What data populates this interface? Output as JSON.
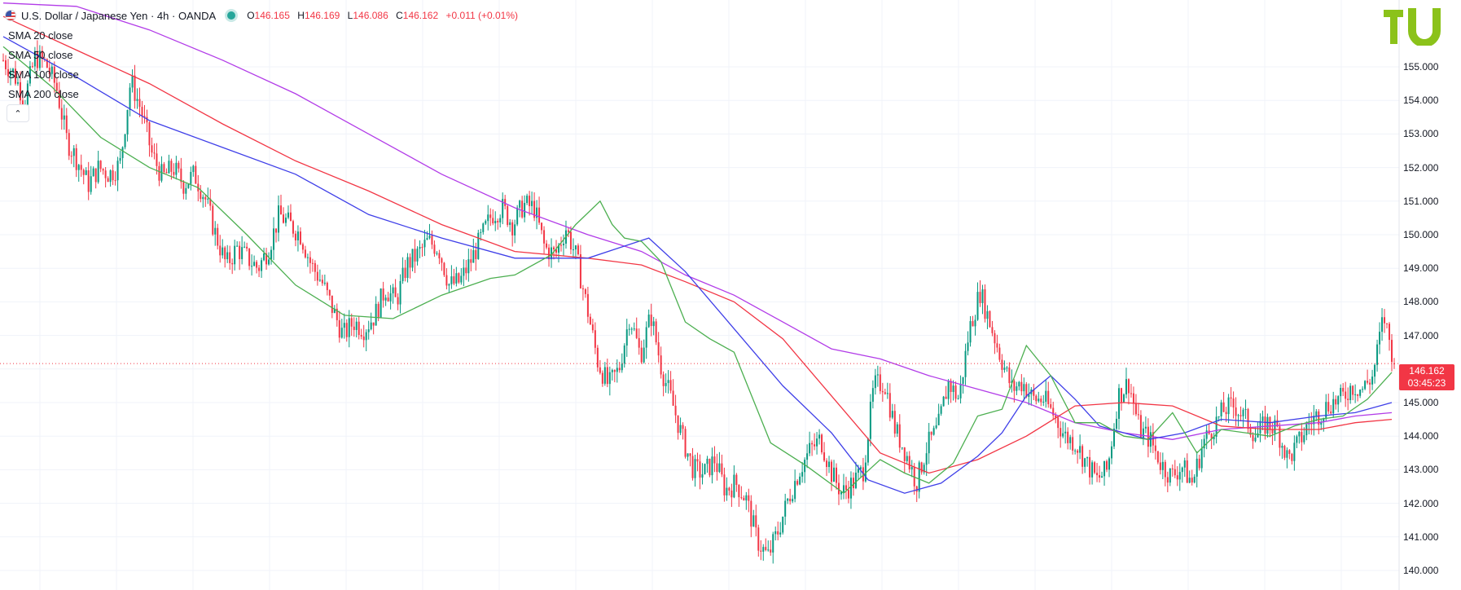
{
  "header": {
    "symbol": "U.S. Dollar / Japanese Yen · 4h · OANDA",
    "open_label": "O",
    "open": "146.165",
    "high_label": "H",
    "high": "146.169",
    "low_label": "L",
    "low": "146.086",
    "close_label": "C",
    "close": "146.162",
    "change": "+0.011 (+0.01%)"
  },
  "legend": [
    "SMA 20 close",
    "SMA 50 close",
    "SMA 100 close",
    "SMA 200 close"
  ],
  "last_price": {
    "value": "146.162",
    "countdown": "03:45:23"
  },
  "colors": {
    "up": "#089981",
    "down": "#f23645",
    "sma20": "#4caf50",
    "sma50": "#3f3fe8",
    "sma100": "#f23645",
    "sma200": "#b23ce8",
    "logo": "#8bc21a",
    "price_line": "#f23645"
  },
  "chart_data": {
    "type": "candlestick",
    "y_axis": {
      "ticks": [
        "155.000",
        "154.000",
        "153.000",
        "152.000",
        "151.000",
        "150.000",
        "149.000",
        "148.000",
        "147.000",
        "146.000",
        "145.000",
        "144.000",
        "143.000",
        "142.000",
        "141.000",
        "140.000"
      ],
      "range": [
        139.8,
        156.8
      ],
      "position": "right"
    },
    "grid": true,
    "close_path": [
      [
        0,
        155.2
      ],
      [
        3,
        154.8
      ],
      [
        6,
        154.0
      ],
      [
        9,
        155.3
      ],
      [
        12,
        155.1
      ],
      [
        15,
        154.4
      ],
      [
        18,
        152.8
      ],
      [
        21,
        152.2
      ],
      [
        24,
        151.5
      ],
      [
        27,
        152.0
      ],
      [
        30,
        151.8
      ],
      [
        33,
        152.1
      ],
      [
        36,
        154.6
      ],
      [
        39,
        153.7
      ],
      [
        42,
        152.4
      ],
      [
        45,
        151.7
      ],
      [
        48,
        152.0
      ],
      [
        51,
        151.5
      ],
      [
        54,
        151.8
      ],
      [
        57,
        151.1
      ],
      [
        60,
        150.0
      ],
      [
        63,
        149.1
      ],
      [
        66,
        149.6
      ],
      [
        69,
        149.3
      ],
      [
        72,
        149.0
      ],
      [
        75,
        149.6
      ],
      [
        78,
        150.6
      ],
      [
        81,
        150.3
      ],
      [
        84,
        150.0
      ],
      [
        87,
        149.1
      ],
      [
        90,
        148.6
      ],
      [
        93,
        147.8
      ],
      [
        96,
        147.0
      ],
      [
        99,
        147.4
      ],
      [
        102,
        147.2
      ],
      [
        105,
        147.6
      ],
      [
        108,
        148.4
      ],
      [
        111,
        148.0
      ],
      [
        114,
        149.1
      ],
      [
        117,
        149.4
      ],
      [
        120,
        149.8
      ],
      [
        123,
        149.6
      ],
      [
        126,
        148.5
      ],
      [
        129,
        148.6
      ],
      [
        132,
        149.2
      ],
      [
        135,
        149.9
      ],
      [
        138,
        150.6
      ],
      [
        141,
        150.8
      ],
      [
        144,
        150.3
      ],
      [
        147,
        150.9
      ],
      [
        150,
        150.8
      ],
      [
        153,
        149.6
      ],
      [
        156,
        149.4
      ],
      [
        159,
        150.2
      ],
      [
        162,
        149.3
      ],
      [
        165,
        147.8
      ],
      [
        168,
        146.2
      ],
      [
        171,
        145.5
      ],
      [
        174,
        146.0
      ],
      [
        177,
        147.6
      ],
      [
        180,
        146.4
      ],
      [
        183,
        147.6
      ],
      [
        186,
        146.0
      ],
      [
        189,
        145.0
      ],
      [
        192,
        143.9
      ],
      [
        195,
        143.0
      ],
      [
        198,
        142.9
      ],
      [
        201,
        143.3
      ],
      [
        204,
        142.4
      ],
      [
        207,
        142.6
      ],
      [
        210,
        142.1
      ],
      [
        213,
        140.9
      ],
      [
        216,
        140.4
      ],
      [
        219,
        141.2
      ],
      [
        222,
        142.2
      ],
      [
        225,
        143.0
      ],
      [
        228,
        143.6
      ],
      [
        231,
        143.9
      ],
      [
        234,
        142.9
      ],
      [
        237,
        142.3
      ],
      [
        240,
        142.6
      ],
      [
        243,
        143.0
      ],
      [
        246,
        145.5
      ],
      [
        249,
        145.6
      ],
      [
        252,
        144.2
      ],
      [
        255,
        143.5
      ],
      [
        258,
        142.6
      ],
      [
        261,
        143.7
      ],
      [
        264,
        144.2
      ],
      [
        267,
        145.6
      ],
      [
        270,
        145.1
      ],
      [
        273,
        147.2
      ],
      [
        276,
        148.3
      ],
      [
        279,
        147.3
      ],
      [
        282,
        146.3
      ],
      [
        285,
        145.4
      ],
      [
        288,
        145.6
      ],
      [
        291,
        145.1
      ],
      [
        294,
        145.1
      ],
      [
        297,
        144.6
      ],
      [
        300,
        144.0
      ],
      [
        303,
        143.8
      ],
      [
        306,
        143.2
      ],
      [
        309,
        142.7
      ],
      [
        312,
        143.0
      ],
      [
        315,
        145.2
      ],
      [
        318,
        145.6
      ],
      [
        321,
        144.2
      ],
      [
        324,
        143.9
      ],
      [
        327,
        143.2
      ],
      [
        330,
        142.8
      ],
      [
        333,
        143.1
      ],
      [
        336,
        142.6
      ],
      [
        339,
        143.8
      ],
      [
        342,
        144.3
      ],
      [
        345,
        144.8
      ],
      [
        348,
        144.9
      ],
      [
        351,
        144.5
      ],
      [
        354,
        144.0
      ],
      [
        357,
        144.4
      ],
      [
        360,
        144.2
      ],
      [
        363,
        143.3
      ],
      [
        366,
        143.8
      ],
      [
        369,
        144.4
      ],
      [
        372,
        144.7
      ],
      [
        375,
        145.0
      ],
      [
        378,
        145.1
      ],
      [
        381,
        145.5
      ],
      [
        384,
        145.4
      ],
      [
        387,
        145.8
      ],
      [
        390,
        147.6
      ],
      [
        393,
        146.2
      ]
    ],
    "sma_paths": {
      "sma20": [
        [
          0,
          155.6
        ],
        [
          20,
          154.4
        ],
        [
          40,
          152.9
        ],
        [
          60,
          152.0
        ],
        [
          80,
          151.4
        ],
        [
          100,
          150.0
        ],
        [
          120,
          148.5
        ],
        [
          140,
          147.6
        ],
        [
          160,
          147.5
        ],
        [
          180,
          148.2
        ],
        [
          200,
          148.7
        ],
        [
          210,
          148.8
        ],
        [
          225,
          149.4
        ],
        [
          235,
          150.3
        ],
        [
          245,
          151.0
        ],
        [
          250,
          150.3
        ],
        [
          255,
          149.9
        ],
        [
          262,
          149.8
        ],
        [
          270,
          149.2
        ],
        [
          280,
          147.4
        ],
        [
          290,
          146.9
        ],
        [
          300,
          146.5
        ],
        [
          315,
          143.8
        ],
        [
          330,
          143.1
        ],
        [
          345,
          142.3
        ],
        [
          360,
          143.3
        ],
        [
          370,
          142.9
        ],
        [
          380,
          142.6
        ],
        [
          390,
          143.2
        ],
        [
          400,
          144.6
        ],
        [
          410,
          144.8
        ],
        [
          420,
          146.7
        ],
        [
          430,
          145.8
        ],
        [
          440,
          144.4
        ],
        [
          450,
          144.4
        ],
        [
          460,
          144.0
        ],
        [
          470,
          143.9
        ],
        [
          480,
          144.7
        ],
        [
          490,
          143.5
        ],
        [
          500,
          144.2
        ],
        [
          510,
          144.1
        ],
        [
          520,
          144.0
        ],
        [
          530,
          144.3
        ],
        [
          540,
          144.5
        ],
        [
          550,
          144.6
        ],
        [
          560,
          145.1
        ],
        [
          570,
          145.9
        ]
      ],
      "sma50": [
        [
          0,
          155.9
        ],
        [
          30,
          154.7
        ],
        [
          60,
          153.4
        ],
        [
          90,
          152.6
        ],
        [
          120,
          151.8
        ],
        [
          150,
          150.6
        ],
        [
          180,
          149.9
        ],
        [
          210,
          149.3
        ],
        [
          240,
          149.3
        ],
        [
          265,
          149.9
        ],
        [
          280,
          148.9
        ],
        [
          300,
          147.2
        ],
        [
          320,
          145.5
        ],
        [
          340,
          144.1
        ],
        [
          355,
          142.7
        ],
        [
          370,
          142.3
        ],
        [
          385,
          142.6
        ],
        [
          400,
          143.4
        ],
        [
          410,
          144.1
        ],
        [
          420,
          145.2
        ],
        [
          430,
          145.8
        ],
        [
          440,
          145.1
        ],
        [
          450,
          144.3
        ],
        [
          460,
          144.1
        ],
        [
          470,
          143.9
        ],
        [
          485,
          144.1
        ],
        [
          500,
          144.5
        ],
        [
          520,
          144.4
        ],
        [
          540,
          144.6
        ],
        [
          555,
          144.7
        ],
        [
          570,
          145.0
        ]
      ],
      "sma100": [
        [
          0,
          156.5
        ],
        [
          30,
          155.5
        ],
        [
          60,
          154.5
        ],
        [
          90,
          153.3
        ],
        [
          120,
          152.2
        ],
        [
          150,
          151.3
        ],
        [
          180,
          150.3
        ],
        [
          210,
          149.5
        ],
        [
          240,
          149.3
        ],
        [
          262,
          149.1
        ],
        [
          280,
          148.6
        ],
        [
          300,
          148.0
        ],
        [
          320,
          146.9
        ],
        [
          340,
          145.2
        ],
        [
          360,
          143.5
        ],
        [
          380,
          142.9
        ],
        [
          400,
          143.3
        ],
        [
          420,
          144.0
        ],
        [
          440,
          144.9
        ],
        [
          460,
          145.0
        ],
        [
          480,
          144.9
        ],
        [
          500,
          144.3
        ],
        [
          520,
          144.2
        ],
        [
          540,
          144.2
        ],
        [
          555,
          144.4
        ],
        [
          570,
          144.5
        ]
      ],
      "sma200": [
        [
          0,
          156.9
        ],
        [
          30,
          156.8
        ],
        [
          60,
          156.1
        ],
        [
          90,
          155.2
        ],
        [
          120,
          154.2
        ],
        [
          150,
          153.0
        ],
        [
          180,
          151.8
        ],
        [
          210,
          150.8
        ],
        [
          240,
          150.0
        ],
        [
          262,
          149.5
        ],
        [
          280,
          148.8
        ],
        [
          300,
          148.2
        ],
        [
          320,
          147.4
        ],
        [
          340,
          146.6
        ],
        [
          360,
          146.3
        ],
        [
          380,
          145.8
        ],
        [
          400,
          145.4
        ],
        [
          420,
          145.0
        ],
        [
          440,
          144.4
        ],
        [
          460,
          144.1
        ],
        [
          480,
          143.9
        ],
        [
          500,
          144.2
        ],
        [
          520,
          144.3
        ],
        [
          540,
          144.4
        ],
        [
          555,
          144.6
        ],
        [
          570,
          144.7
        ]
      ]
    }
  }
}
